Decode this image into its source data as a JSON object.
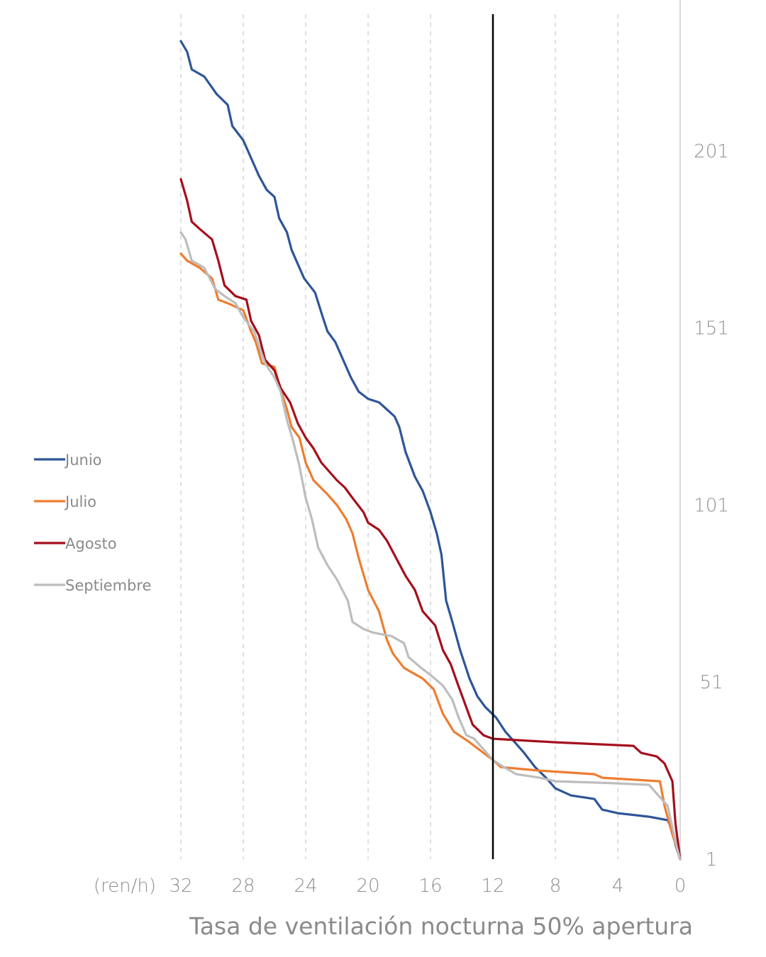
{
  "chart_data": {
    "type": "line",
    "xlabel": "Tasa de ventilación nocturna 50% apertura",
    "x_unit_label": "(ren/h)",
    "xlim": [
      32,
      0
    ],
    "x_ticks": [
      "32",
      "28",
      "24",
      "20",
      "16",
      "12",
      "8",
      "4",
      "0"
    ],
    "ylim": [
      1,
      232
    ],
    "y_ticks": [
      "1",
      "51",
      "101",
      "151",
      "201"
    ],
    "reference_line_x": 12,
    "grid": "vertical dashed",
    "legend_position": "left",
    "series": [
      {
        "name": "Junio",
        "color": "#2E5597",
        "points": [
          [
            32,
            232
          ],
          [
            31.6,
            229
          ],
          [
            31.3,
            224
          ],
          [
            30.5,
            222
          ],
          [
            29.7,
            217
          ],
          [
            29.0,
            214
          ],
          [
            28.7,
            208
          ],
          [
            28.0,
            204
          ],
          [
            27.4,
            198
          ],
          [
            27.0,
            194
          ],
          [
            26.5,
            190
          ],
          [
            26.0,
            188
          ],
          [
            25.7,
            182
          ],
          [
            25.2,
            178
          ],
          [
            24.9,
            173
          ],
          [
            24.6,
            170
          ],
          [
            24.1,
            165
          ],
          [
            23.4,
            161
          ],
          [
            22.9,
            154
          ],
          [
            22.6,
            150
          ],
          [
            22.1,
            147
          ],
          [
            21.5,
            141
          ],
          [
            21.1,
            137
          ],
          [
            20.6,
            133
          ],
          [
            20.0,
            131
          ],
          [
            19.3,
            130
          ],
          [
            18.8,
            128
          ],
          [
            18.3,
            126
          ],
          [
            18.0,
            123
          ],
          [
            17.6,
            116
          ],
          [
            17.0,
            109
          ],
          [
            16.5,
            105
          ],
          [
            16.0,
            99
          ],
          [
            15.6,
            93
          ],
          [
            15.3,
            87
          ],
          [
            15.0,
            74
          ],
          [
            14.6,
            68
          ],
          [
            14.1,
            60
          ],
          [
            13.5,
            52
          ],
          [
            13.0,
            47
          ],
          [
            12.5,
            44
          ],
          [
            11.8,
            41
          ],
          [
            11.2,
            37
          ],
          [
            10.6,
            34
          ],
          [
            10.0,
            31
          ],
          [
            9.3,
            27
          ],
          [
            8.6,
            24
          ],
          [
            8.0,
            21
          ],
          [
            7.0,
            19
          ],
          [
            5.5,
            18
          ],
          [
            5.0,
            15
          ],
          [
            4.0,
            14
          ],
          [
            2.0,
            13
          ],
          [
            0.8,
            12
          ],
          [
            0.5,
            9
          ],
          [
            0.3,
            5
          ],
          [
            0,
            1
          ]
        ]
      },
      {
        "name": "Julio",
        "color": "#ED7D31",
        "points": [
          [
            32,
            172
          ],
          [
            31.6,
            170
          ],
          [
            30.8,
            168
          ],
          [
            30.0,
            165
          ],
          [
            29.6,
            159
          ],
          [
            29.0,
            158
          ],
          [
            28.0,
            156
          ],
          [
            27.5,
            150
          ],
          [
            27.2,
            147
          ],
          [
            26.8,
            141
          ],
          [
            26.0,
            140
          ],
          [
            25.7,
            135
          ],
          [
            25.2,
            128
          ],
          [
            24.9,
            123
          ],
          [
            24.4,
            120
          ],
          [
            24.0,
            113
          ],
          [
            23.5,
            108
          ],
          [
            22.6,
            104
          ],
          [
            22.0,
            101
          ],
          [
            21.4,
            97
          ],
          [
            21.0,
            93
          ],
          [
            20.6,
            86
          ],
          [
            20.0,
            77
          ],
          [
            19.3,
            71
          ],
          [
            18.8,
            63
          ],
          [
            18.4,
            59
          ],
          [
            17.7,
            55
          ],
          [
            16.5,
            52
          ],
          [
            15.8,
            49
          ],
          [
            15.2,
            42
          ],
          [
            14.5,
            37
          ],
          [
            13.5,
            34
          ],
          [
            12.6,
            31
          ],
          [
            12.0,
            29
          ],
          [
            11.5,
            27
          ],
          [
            9.0,
            26
          ],
          [
            5.5,
            25
          ],
          [
            5.0,
            24
          ],
          [
            1.3,
            23
          ],
          [
            1.0,
            16
          ],
          [
            0.5,
            8
          ],
          [
            0.2,
            4
          ],
          [
            0,
            1
          ]
        ]
      },
      {
        "name": "Agosto",
        "color": "#A50F1C",
        "points": [
          [
            32,
            193
          ],
          [
            31.6,
            187
          ],
          [
            31.3,
            181
          ],
          [
            30.8,
            179
          ],
          [
            30.0,
            176
          ],
          [
            29.6,
            170
          ],
          [
            29.2,
            163
          ],
          [
            28.5,
            160
          ],
          [
            27.8,
            159
          ],
          [
            27.5,
            153
          ],
          [
            27.0,
            149
          ],
          [
            26.6,
            142
          ],
          [
            26.0,
            139
          ],
          [
            25.6,
            134
          ],
          [
            25.0,
            130
          ],
          [
            24.5,
            124
          ],
          [
            24.0,
            120
          ],
          [
            23.5,
            117
          ],
          [
            23.0,
            113
          ],
          [
            22.0,
            108
          ],
          [
            21.5,
            106
          ],
          [
            21.0,
            103
          ],
          [
            20.3,
            99
          ],
          [
            20.0,
            96
          ],
          [
            19.3,
            94
          ],
          [
            18.8,
            91
          ],
          [
            18.2,
            86
          ],
          [
            17.6,
            81
          ],
          [
            17.0,
            77
          ],
          [
            16.5,
            71
          ],
          [
            15.7,
            67
          ],
          [
            15.2,
            60
          ],
          [
            14.7,
            56
          ],
          [
            14.3,
            51
          ],
          [
            13.8,
            45
          ],
          [
            13.3,
            39
          ],
          [
            12.6,
            36
          ],
          [
            12.0,
            35
          ],
          [
            8.0,
            34
          ],
          [
            3.0,
            33
          ],
          [
            2.5,
            31
          ],
          [
            1.5,
            30
          ],
          [
            1.0,
            28
          ],
          [
            0.5,
            23
          ],
          [
            0.3,
            11
          ],
          [
            0,
            1
          ]
        ]
      },
      {
        "name": "Septiembre",
        "color": "#BDBDBD",
        "points": [
          [
            32,
            178
          ],
          [
            31.7,
            176
          ],
          [
            31.3,
            170
          ],
          [
            30.5,
            168
          ],
          [
            29.8,
            162
          ],
          [
            29.2,
            160
          ],
          [
            28.5,
            158
          ],
          [
            28.0,
            154
          ],
          [
            27.3,
            150
          ],
          [
            27.0,
            146
          ],
          [
            26.6,
            141
          ],
          [
            26.0,
            137
          ],
          [
            25.6,
            133
          ],
          [
            25.2,
            125
          ],
          [
            24.8,
            119
          ],
          [
            24.4,
            112
          ],
          [
            24.0,
            103
          ],
          [
            23.6,
            97
          ],
          [
            23.2,
            89
          ],
          [
            22.6,
            84
          ],
          [
            22.0,
            80
          ],
          [
            21.3,
            74
          ],
          [
            21.0,
            68
          ],
          [
            20.3,
            66
          ],
          [
            19.7,
            65
          ],
          [
            18.5,
            64
          ],
          [
            17.7,
            62
          ],
          [
            17.4,
            58
          ],
          [
            16.6,
            55
          ],
          [
            16.0,
            53
          ],
          [
            15.2,
            50
          ],
          [
            14.6,
            46
          ],
          [
            14.2,
            41
          ],
          [
            13.7,
            36
          ],
          [
            13.2,
            35
          ],
          [
            12.6,
            32
          ],
          [
            12.0,
            29
          ],
          [
            11.3,
            27
          ],
          [
            10.5,
            25
          ],
          [
            9.0,
            24
          ],
          [
            8.0,
            23
          ],
          [
            4.5,
            22.5
          ],
          [
            2.0,
            22
          ],
          [
            1.4,
            19
          ],
          [
            0.8,
            16
          ],
          [
            0.5,
            10
          ],
          [
            0.2,
            4
          ],
          [
            0,
            1
          ]
        ]
      }
    ]
  }
}
